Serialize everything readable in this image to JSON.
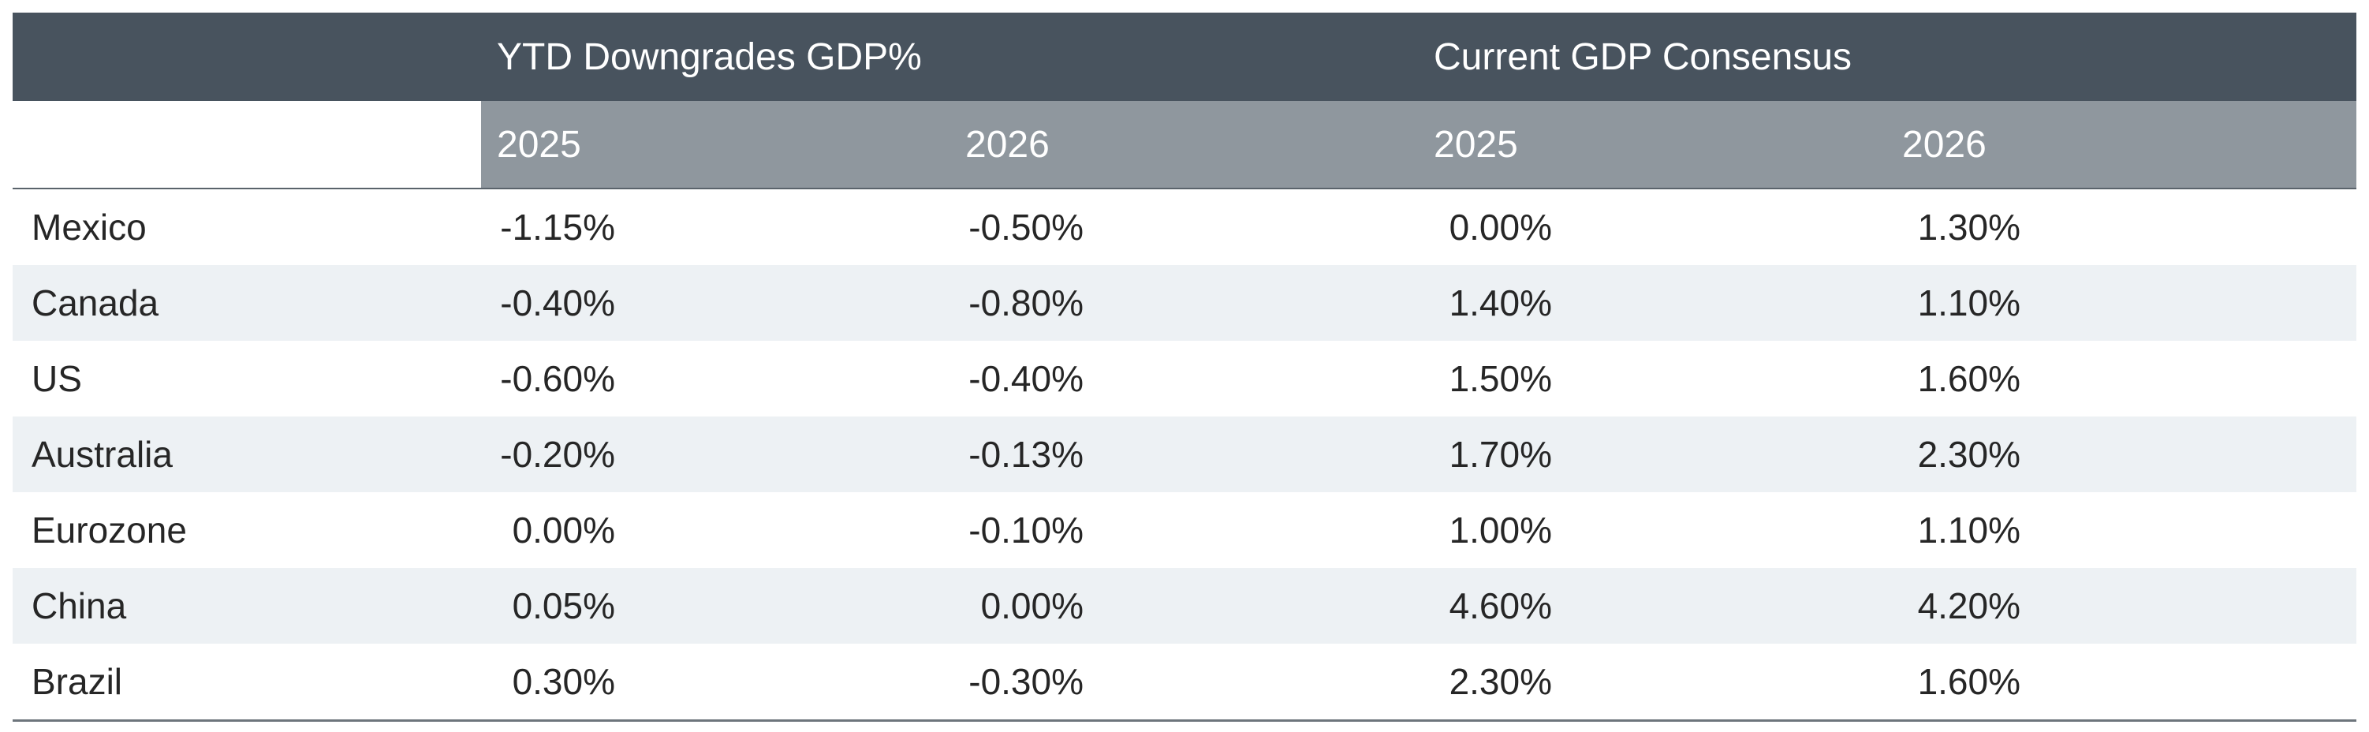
{
  "table": {
    "group_headers": [
      "",
      "YTD Downgrades GDP%",
      "Current GDP Consensus"
    ],
    "year_headers": [
      "",
      "2025",
      "2026",
      "2025",
      "2026"
    ],
    "rows": [
      {
        "country": "Mexico",
        "ytd_2025": "-1.15%",
        "ytd_2026": "-0.50%",
        "cons_2025": "0.00%",
        "cons_2026": "1.30%"
      },
      {
        "country": "Canada",
        "ytd_2025": "-0.40%",
        "ytd_2026": "-0.80%",
        "cons_2025": "1.40%",
        "cons_2026": "1.10%"
      },
      {
        "country": "US",
        "ytd_2025": "-0.60%",
        "ytd_2026": "-0.40%",
        "cons_2025": "1.50%",
        "cons_2026": "1.60%"
      },
      {
        "country": "Australia",
        "ytd_2025": "-0.20%",
        "ytd_2026": "-0.13%",
        "cons_2025": "1.70%",
        "cons_2026": "2.30%"
      },
      {
        "country": "Eurozone",
        "ytd_2025": "0.00%",
        "ytd_2026": "-0.10%",
        "cons_2025": "1.00%",
        "cons_2026": "1.10%"
      },
      {
        "country": "China",
        "ytd_2025": "0.05%",
        "ytd_2026": "0.00%",
        "cons_2025": "4.60%",
        "cons_2026": "4.20%"
      },
      {
        "country": "Brazil",
        "ytd_2025": "0.30%",
        "ytd_2026": "-0.30%",
        "cons_2025": "2.30%",
        "cons_2026": "1.60%"
      }
    ]
  },
  "colors": {
    "header_dark": "#48535e",
    "header_light": "#8f979e",
    "row_alt": "#edf1f4"
  }
}
